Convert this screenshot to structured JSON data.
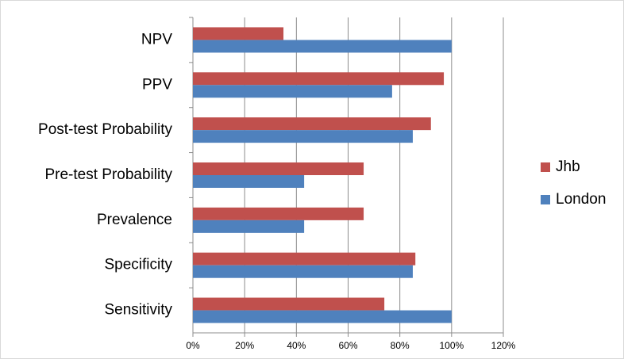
{
  "chart_data": {
    "type": "bar",
    "orientation": "horizontal",
    "categories": [
      "Sensitivity",
      "Specificity",
      "Prevalence",
      "Pre-test Probability",
      "Post-test Probability",
      "PPV",
      "NPV"
    ],
    "series": [
      {
        "name": "Jhb",
        "color": "#c0504d",
        "values": [
          74,
          86,
          66,
          66,
          92,
          97,
          35
        ]
      },
      {
        "name": "London",
        "color": "#4f81bd",
        "values": [
          100,
          85,
          43,
          43,
          85,
          77,
          100
        ]
      }
    ],
    "xlim": [
      0,
      120
    ],
    "xticks": [
      {
        "value": 0,
        "label": "0%"
      },
      {
        "value": 20,
        "label": "20%"
      },
      {
        "value": 40,
        "label": "40%"
      },
      {
        "value": 60,
        "label": "60%"
      },
      {
        "value": 80,
        "label": "80%"
      },
      {
        "value": 100,
        "label": "100%"
      },
      {
        "value": 120,
        "label": "120%"
      }
    ],
    "grid": true,
    "legend": "right"
  }
}
